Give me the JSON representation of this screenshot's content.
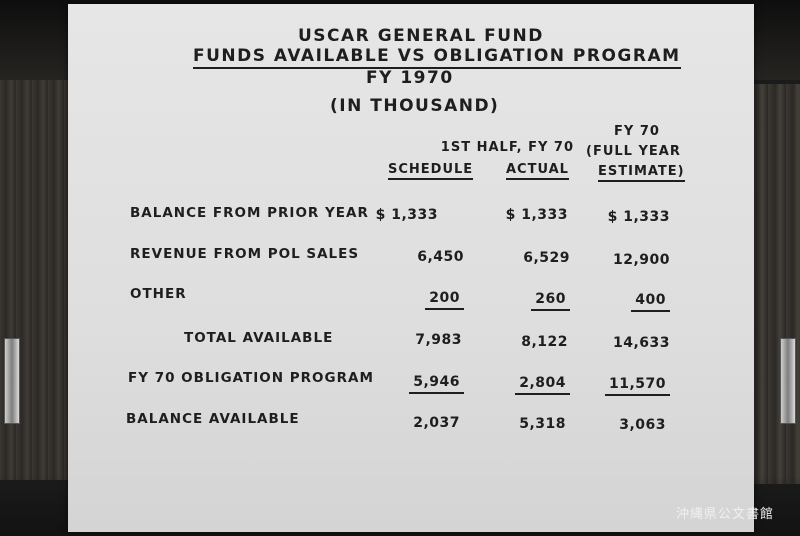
{
  "title": {
    "line1": "USCAR GENERAL FUND",
    "line2": "FUNDS AVAILABLE VS OBLIGATION PROGRAM",
    "line3": "FY 1970",
    "line4": "(IN THOUSAND)"
  },
  "columns": {
    "group_header": "1ST HALF, FY 70",
    "schedule": "SCHEDULE",
    "actual": "ACTUAL",
    "fy70_line1": "FY 70",
    "fy70_line2": "(FULL YEAR",
    "fy70_line3": "ESTIMATE)"
  },
  "rows": [
    {
      "label": "BALANCE FROM PRIOR YEAR",
      "schedule": "$ 1,333",
      "actual": "$ 1,333",
      "estimate": "$ 1,333"
    },
    {
      "label": "REVENUE FROM POL SALES",
      "schedule": "6,450",
      "actual": "6,529",
      "estimate": "12,900"
    },
    {
      "label": "OTHER",
      "schedule": "200",
      "actual": "260",
      "estimate": "400"
    },
    {
      "label": "TOTAL AVAILABLE",
      "schedule": "7,983",
      "actual": "8,122",
      "estimate": "14,633"
    },
    {
      "label": "FY 70 OBLIGATION PROGRAM",
      "schedule": "5,946",
      "actual": "2,804",
      "estimate": "11,570"
    },
    {
      "label": "BALANCE AVAILABLE",
      "schedule": "2,037",
      "actual": "5,318",
      "estimate": "3,063"
    }
  ],
  "watermark": "沖縄県公文書館"
}
